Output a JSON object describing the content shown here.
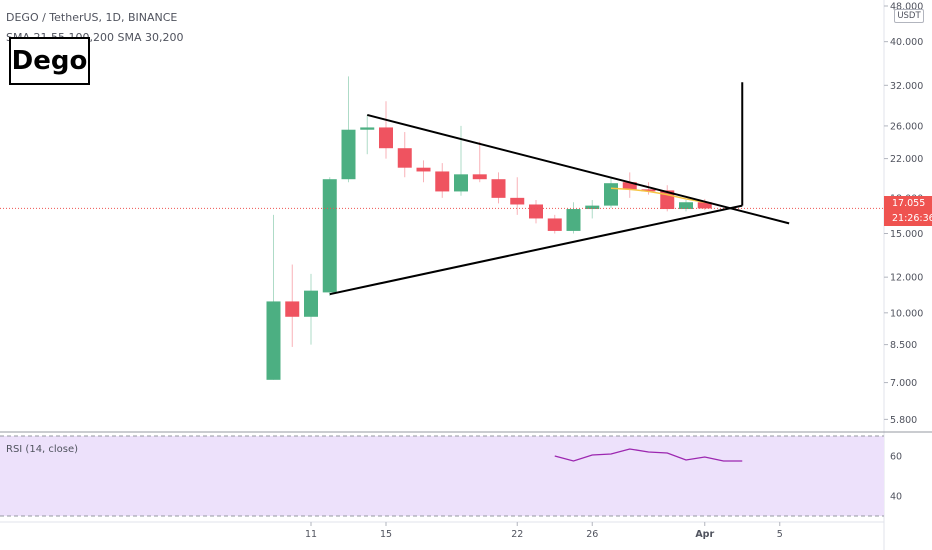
{
  "header": {
    "symbol_line": "DEGO / TetherUS, 1D, BINANCE",
    "indicator_line": "SMA 21,55,100,200 SMA 30,200"
  },
  "logo": {
    "text": "Dego"
  },
  "price_axis": {
    "currency": "USDT"
  },
  "last_price": {
    "price": "17.055",
    "countdown": "21:26:36"
  },
  "rsi": {
    "label": "RSI (14, close)"
  },
  "colors": {
    "up": "#4caf82",
    "down": "#ef5360",
    "rsi_line": "#9c27b0",
    "rsi_band": "#ede1fb",
    "current": "#ef5350"
  },
  "chart_data": {
    "type": "candlestick",
    "title": "DEGO / TetherUS, 1D, BINANCE",
    "y_scale": "log",
    "y_ticks": [
      "48.000",
      "40.000",
      "32.000",
      "26.000",
      "22.000",
      "18.000",
      "15.000",
      "12.000",
      "10.000",
      "8.500",
      "7.000",
      "5.800"
    ],
    "y_tick_values": [
      48,
      40,
      32,
      26,
      22,
      18,
      15,
      12,
      10,
      8.5,
      7,
      5.8
    ],
    "x_ticks": [
      {
        "label": "11",
        "day": 11
      },
      {
        "label": "15",
        "day": 15
      },
      {
        "label": "22",
        "day": 22
      },
      {
        "label": "26",
        "day": 26
      },
      {
        "label": "Apr",
        "day": 32
      },
      {
        "label": "5",
        "day": 36
      }
    ],
    "candles": [
      {
        "day": 9,
        "o": 7.1,
        "h": 16.5,
        "l": 7.1,
        "c": 10.6
      },
      {
        "day": 10,
        "o": 10.6,
        "h": 12.8,
        "l": 8.4,
        "c": 9.8
      },
      {
        "day": 11,
        "o": 9.8,
        "h": 12.2,
        "l": 8.5,
        "c": 11.2
      },
      {
        "day": 12,
        "o": 11.1,
        "h": 20.0,
        "l": 10.9,
        "c": 19.8
      },
      {
        "day": 13,
        "o": 19.8,
        "h": 33.5,
        "l": 19.5,
        "c": 25.5
      },
      {
        "day": 14,
        "o": 25.5,
        "h": 27.5,
        "l": 22.5,
        "c": 25.8
      },
      {
        "day": 15,
        "o": 25.8,
        "h": 29.5,
        "l": 22.0,
        "c": 23.2
      },
      {
        "day": 16,
        "o": 23.2,
        "h": 25.2,
        "l": 20.0,
        "c": 21.0
      },
      {
        "day": 17,
        "o": 21.0,
        "h": 21.8,
        "l": 19.5,
        "c": 20.6
      },
      {
        "day": 18,
        "o": 20.6,
        "h": 21.5,
        "l": 18.0,
        "c": 18.6
      },
      {
        "day": 19,
        "o": 18.6,
        "h": 26.0,
        "l": 18.2,
        "c": 20.3
      },
      {
        "day": 20,
        "o": 20.3,
        "h": 24.0,
        "l": 19.5,
        "c": 19.8
      },
      {
        "day": 21,
        "o": 19.8,
        "h": 20.5,
        "l": 17.5,
        "c": 18.0
      },
      {
        "day": 22,
        "o": 18.0,
        "h": 20.0,
        "l": 16.5,
        "c": 17.4
      },
      {
        "day": 23,
        "o": 17.4,
        "h": 17.8,
        "l": 15.8,
        "c": 16.2
      },
      {
        "day": 24,
        "o": 16.2,
        "h": 16.5,
        "l": 15.0,
        "c": 15.2
      },
      {
        "day": 25,
        "o": 15.2,
        "h": 17.6,
        "l": 15.0,
        "c": 17.0
      },
      {
        "day": 26,
        "o": 17.0,
        "h": 17.8,
        "l": 16.2,
        "c": 17.3
      },
      {
        "day": 27,
        "o": 17.3,
        "h": 20.0,
        "l": 17.1,
        "c": 19.4
      },
      {
        "day": 28,
        "o": 19.5,
        "h": 20.5,
        "l": 18.0,
        "c": 18.8
      },
      {
        "day": 29,
        "o": 18.8,
        "h": 19.5,
        "l": 18.3,
        "c": 18.7
      },
      {
        "day": 30,
        "o": 18.7,
        "h": 19.2,
        "l": 16.8,
        "c": 17.0
      },
      {
        "day": 31,
        "o": 17.0,
        "h": 17.8,
        "l": 16.8,
        "c": 17.6
      },
      {
        "day": 32,
        "o": 17.6,
        "h": 17.9,
        "l": 16.9,
        "c": 17.05
      }
    ],
    "sma_line": [
      {
        "day": 27,
        "v": 18.9
      },
      {
        "day": 28,
        "v": 18.8
      },
      {
        "day": 29,
        "v": 18.6
      },
      {
        "day": 30,
        "v": 18.3
      },
      {
        "day": 31,
        "v": 17.9
      },
      {
        "day": 32,
        "v": 17.6
      }
    ],
    "triangle": {
      "upper": [
        {
          "day": 14,
          "v": 27.5
        },
        {
          "day": 36.5,
          "v": 15.8
        }
      ],
      "lower": [
        {
          "day": 12,
          "v": 11.0
        },
        {
          "day": 34,
          "v": 17.3
        }
      ],
      "vertical": [
        {
          "day": 34,
          "v": 17.3
        },
        {
          "day": 34,
          "v": 32.5
        }
      ]
    },
    "rsi": {
      "y_ticks": [
        "60",
        "40"
      ],
      "y_tick_values": [
        60,
        40
      ],
      "values": [
        {
          "day": 24,
          "v": 60
        },
        {
          "day": 25,
          "v": 57.5
        },
        {
          "day": 26,
          "v": 60.5
        },
        {
          "day": 27,
          "v": 61
        },
        {
          "day": 28,
          "v": 63.5
        },
        {
          "day": 29,
          "v": 62
        },
        {
          "day": 30,
          "v": 61.5
        },
        {
          "day": 31,
          "v": 58
        },
        {
          "day": 32,
          "v": 59.5
        },
        {
          "day": 33,
          "v": 57.5
        },
        {
          "day": 34,
          "v": 57.5
        }
      ]
    }
  }
}
